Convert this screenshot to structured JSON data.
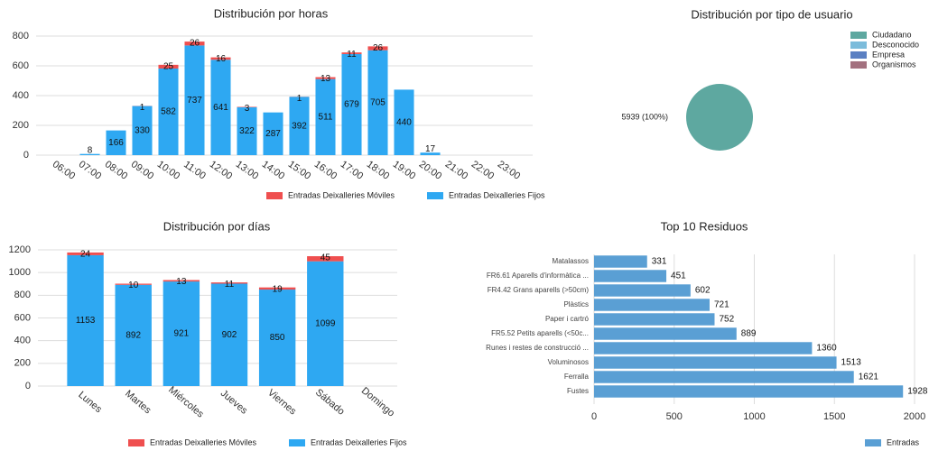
{
  "chart_data": [
    {
      "type": "stacked_bar",
      "title": "Distribución por horas",
      "categories": [
        "06:00",
        "07:00",
        "08:00",
        "09:00",
        "10:00",
        "11:00",
        "12:00",
        "13:00",
        "14:00",
        "15:00",
        "16:00",
        "17:00",
        "18:00",
        "19:00",
        "20:00",
        "21:00",
        "22:00",
        "23:00"
      ],
      "series": [
        {
          "name": "Entradas Deixalleries Móviles",
          "color": "#ef4f4f",
          "values": [
            null,
            null,
            null,
            1,
            25,
            26,
            16,
            3,
            null,
            1,
            13,
            11,
            26,
            null,
            null,
            null,
            null,
            null
          ]
        },
        {
          "name": "Entradas Deixalleries Fijos",
          "color": "#2ea8f2",
          "values": [
            null,
            8,
            166,
            330,
            582,
            737,
            641,
            322,
            287,
            392,
            511,
            679,
            705,
            440,
            17,
            null,
            null,
            null
          ]
        }
      ],
      "ylim": [
        0,
        800
      ],
      "yticks": [
        0,
        200,
        400,
        600,
        800
      ],
      "grid": true,
      "legend": "bottom"
    },
    {
      "type": "pie",
      "title": "Distribución por tipo de usuario",
      "categories": [
        "Ciudadano",
        "Desconocido",
        "Empresa",
        "Organismos"
      ],
      "values": [
        5939,
        0,
        0,
        0
      ],
      "value_labels": [
        "5939 (100%)",
        null,
        null,
        null
      ],
      "colors": [
        "#5ea8a0",
        "#7cbcdb",
        "#5b80c2",
        "#a3717f"
      ],
      "legend": "top-right"
    },
    {
      "type": "stacked_bar",
      "title": "Distribución por días",
      "categories": [
        "Lunes",
        "Martes",
        "Miércoles",
        "Jueves",
        "Viernes",
        "Sábado",
        "Domingo"
      ],
      "series": [
        {
          "name": "Entradas Deixalleries Móviles",
          "color": "#ef4f4f",
          "values": [
            24,
            10,
            13,
            11,
            19,
            45,
            null
          ]
        },
        {
          "name": "Entradas Deixalleries Fijos",
          "color": "#2ea8f2",
          "values": [
            1153,
            892,
            921,
            902,
            850,
            1099,
            null
          ]
        }
      ],
      "ylim": [
        0,
        1200
      ],
      "yticks": [
        0,
        200,
        400,
        600,
        800,
        1000,
        1200
      ],
      "grid": true,
      "legend": "bottom"
    },
    {
      "type": "hbar",
      "title": "Top 10 Residuos",
      "categories": [
        "Matalassos",
        "FR6.61 Aparells d'informàtica ...",
        "FR4.42 Grans aparells (>50cm)",
        "Plàstics",
        "Paper i cartró",
        "FR5.52 Petits aparells   (<50c...",
        "Runes i restes de construcció ...",
        "Voluminosos",
        "Ferralla",
        "Fustes"
      ],
      "series": [
        {
          "name": "Entradas",
          "color": "#5a9fd4",
          "values": [
            331,
            451,
            602,
            721,
            752,
            889,
            1360,
            1513,
            1621,
            1928
          ]
        }
      ],
      "xlim": [
        0,
        2000
      ],
      "xticks": [
        0,
        500,
        1000,
        1500,
        2000
      ],
      "grid": true,
      "legend": "bottom-right"
    }
  ]
}
